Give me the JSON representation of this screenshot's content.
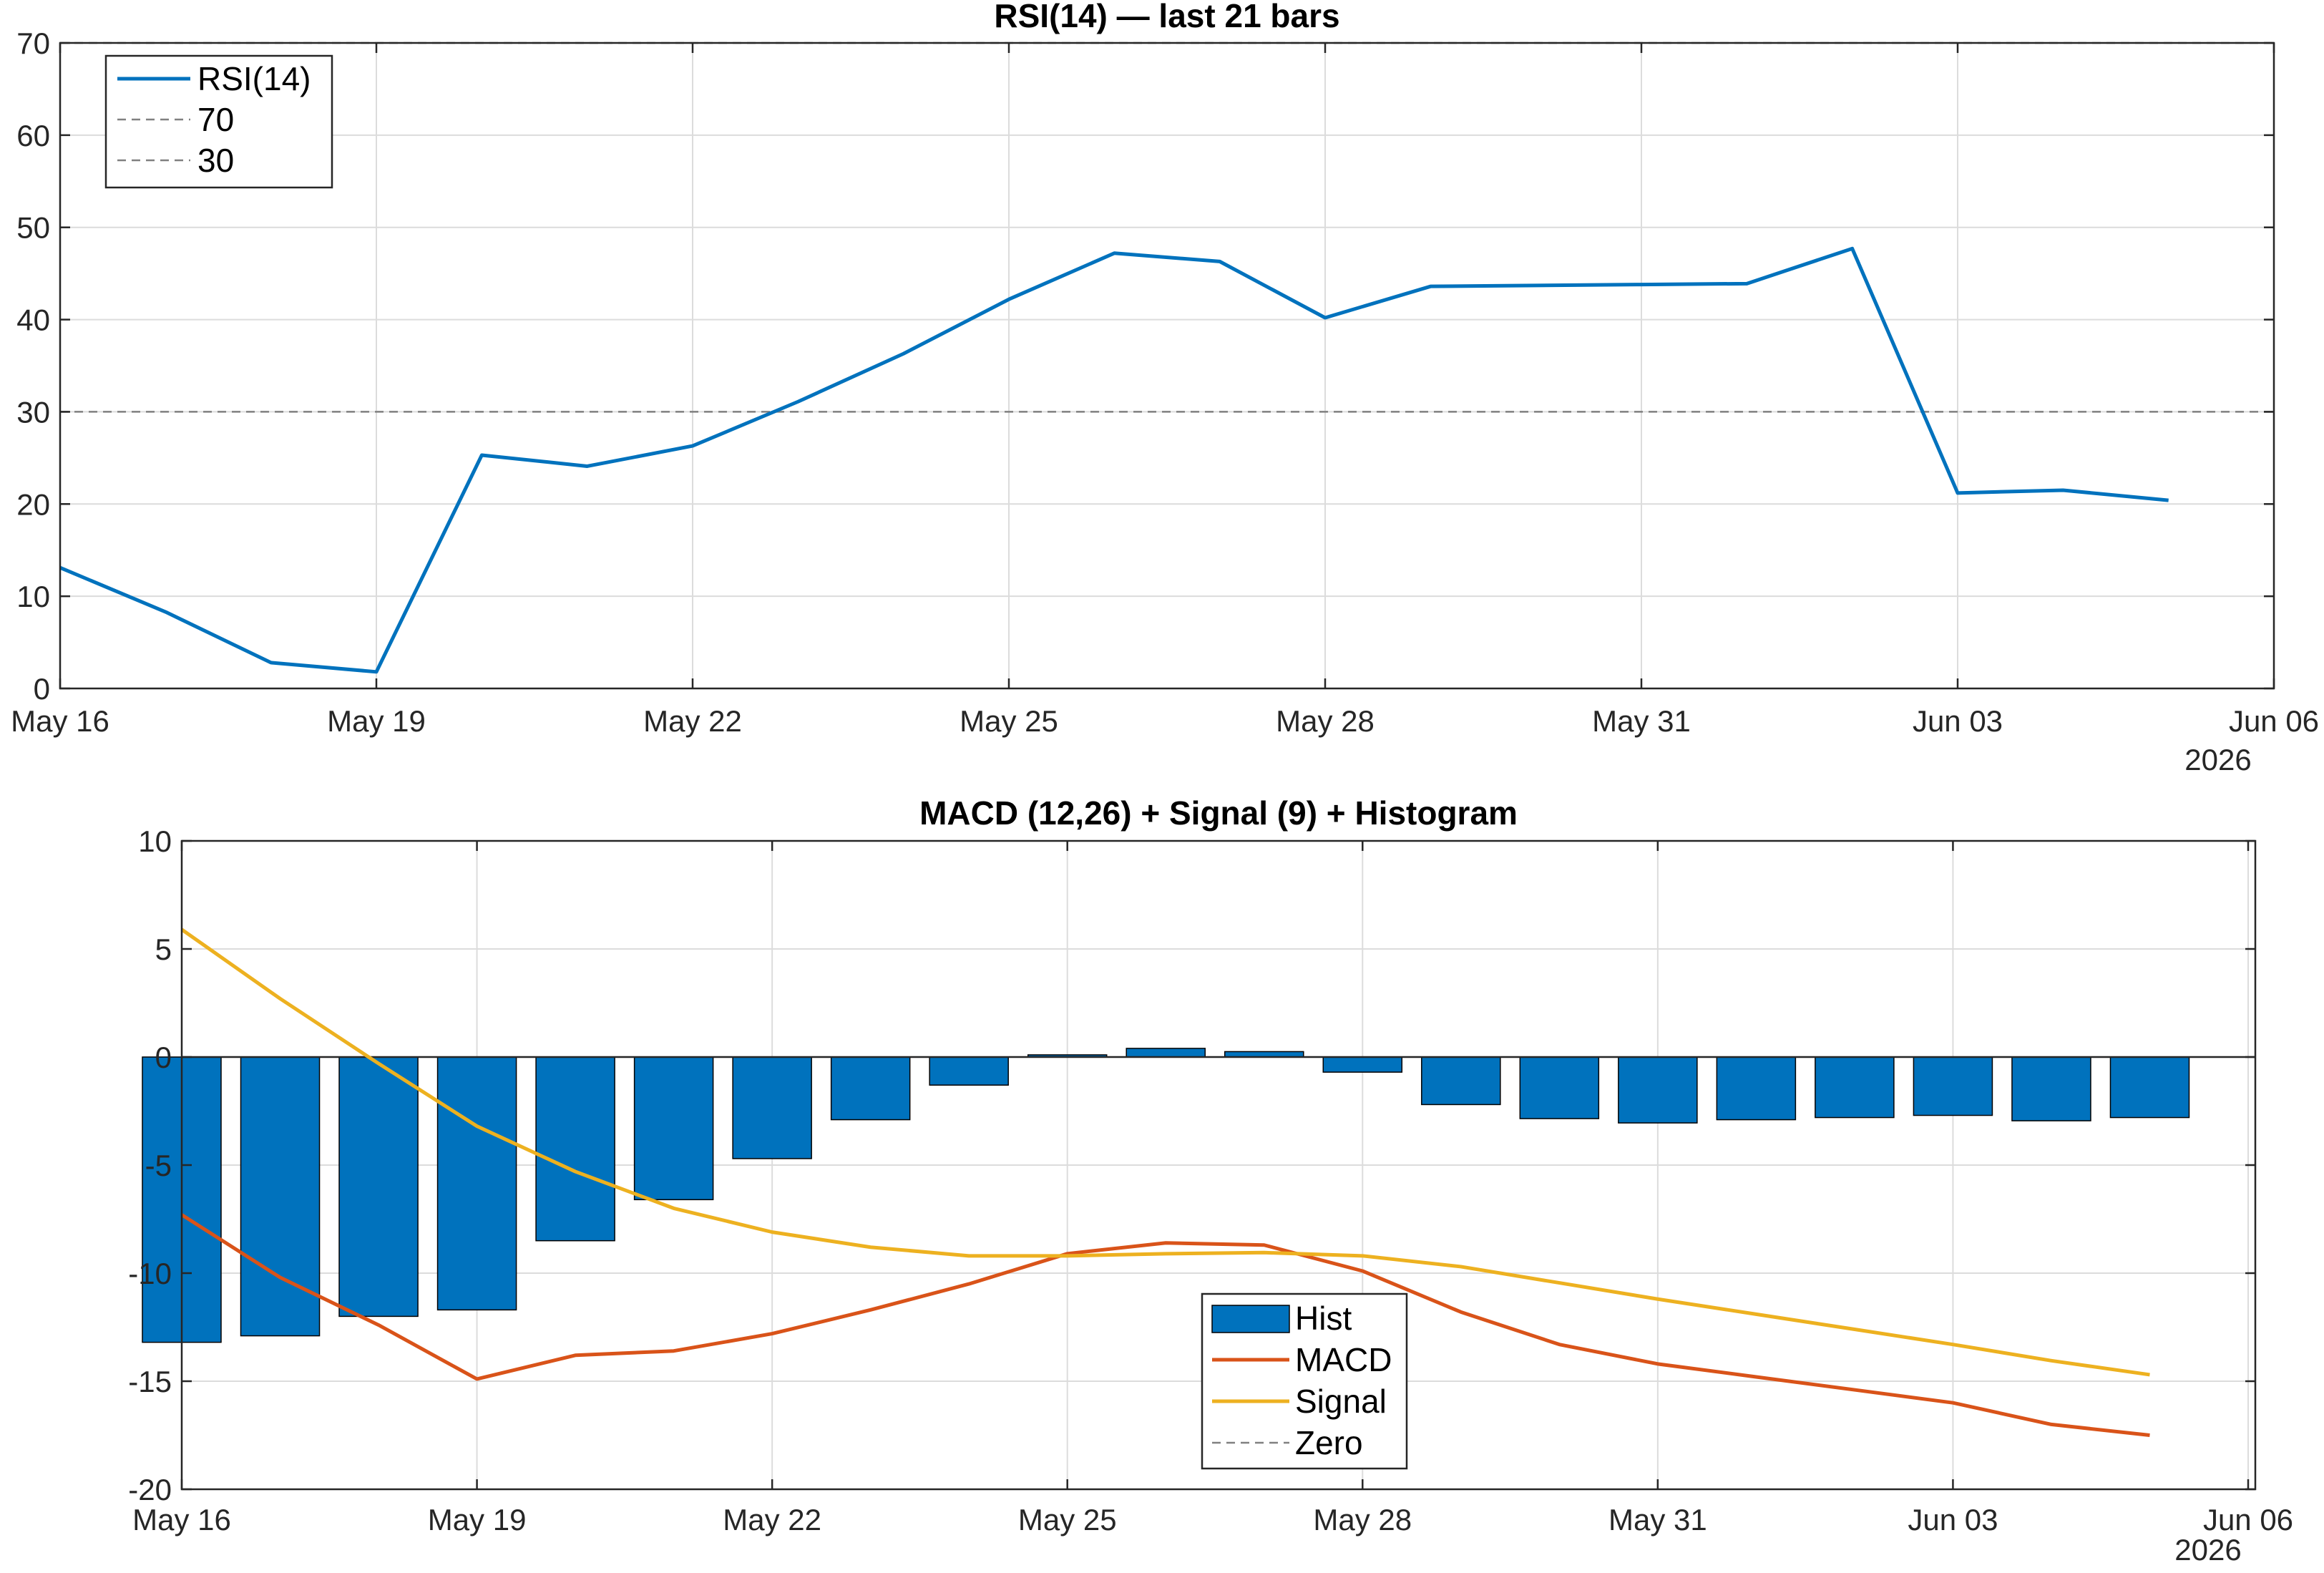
{
  "chart_data": [
    {
      "type": "line",
      "title": "RSI(14) — last 21 bars",
      "xlabel": "",
      "ylabel": "",
      "x_start": "May 16",
      "x_tick_labels": [
        "May 16",
        "May 19",
        "May 22",
        "May 25",
        "May 28",
        "May 31",
        "Jun 03",
        "Jun 06"
      ],
      "x_year_label": "2026",
      "y_ticks": [
        "0",
        "10",
        "20",
        "30",
        "40",
        "50",
        "60",
        "70"
      ],
      "ylim": [
        0,
        70
      ],
      "grid": true,
      "legend_position": "top-left",
      "series": [
        {
          "name": "RSI(14)",
          "color": "#0072BD",
          "style": "solid",
          "x": [
            "May 16",
            "May 17",
            "May 18",
            "May 19",
            "May 20",
            "May 21",
            "May 22",
            "May 23",
            "May 24",
            "May 25",
            "May 26",
            "May 27",
            "May 28",
            "May 29",
            "May 30",
            "May 31",
            "Jun 01",
            "Jun 02",
            "Jun 03",
            "Jun 04",
            "Jun 05"
          ],
          "values": [
            13.1,
            8.3,
            2.8,
            1.8,
            25.3,
            24.1,
            26.3,
            31.1,
            36.3,
            42.2,
            47.2,
            46.3,
            40.2,
            43.6,
            43.7,
            43.8,
            43.9,
            47.7,
            21.2,
            21.5,
            20.4
          ]
        },
        {
          "name": "70",
          "color": "#808080",
          "style": "dashed",
          "constant": 70
        },
        {
          "name": "30",
          "color": "#808080",
          "style": "dashed",
          "constant": 30
        }
      ]
    },
    {
      "type": "bar",
      "title": "MACD (12,26) + Signal (9) + Histogram",
      "xlabel": "",
      "ylabel": "",
      "x_tick_labels": [
        "May 16",
        "May 19",
        "May 22",
        "May 25",
        "May 28",
        "May 31",
        "Jun 03",
        "Jun 06"
      ],
      "x_year_label": "2026",
      "y_ticks": [
        "-20",
        "-15",
        "-10",
        "-5",
        "0",
        "5",
        "10"
      ],
      "ylim": [
        -20,
        10
      ],
      "grid": true,
      "legend_position": "bottom-center",
      "categories": [
        "May 16",
        "May 17",
        "May 18",
        "May 19",
        "May 20",
        "May 21",
        "May 22",
        "May 23",
        "May 24",
        "May 25",
        "May 26",
        "May 27",
        "May 28",
        "May 29",
        "May 30",
        "May 31",
        "Jun 01",
        "Jun 02",
        "Jun 03",
        "Jun 04",
        "Jun 05"
      ],
      "series": [
        {
          "name": "Hist",
          "kind": "bar",
          "color": "#0072BD",
          "values": [
            -13.2,
            -12.9,
            -12.0,
            -11.7,
            -8.5,
            -6.6,
            -4.7,
            -2.9,
            -1.3,
            0.1,
            0.4,
            0.25,
            -0.7,
            -2.2,
            -2.85,
            -3.05,
            -2.9,
            -2.8,
            -2.7,
            -2.95,
            -2.8
          ]
        },
        {
          "name": "MACD",
          "kind": "line",
          "color": "#D95319",
          "values": [
            -7.3,
            -10.2,
            -12.4,
            -14.9,
            -13.8,
            -13.6,
            -12.8,
            -11.7,
            -10.5,
            -9.1,
            -8.6,
            -8.7,
            -9.9,
            -11.8,
            -13.3,
            -14.2,
            -14.8,
            -15.4,
            -16.0,
            -17.0,
            -17.5
          ]
        },
        {
          "name": "Signal",
          "kind": "line",
          "color": "#EDB120",
          "values": [
            5.9,
            2.7,
            -0.3,
            -3.2,
            -5.3,
            -7.0,
            -8.1,
            -8.8,
            -9.2,
            -9.2,
            -9.1,
            -9.05,
            -9.2,
            -9.7,
            -10.45,
            -11.2,
            -11.9,
            -12.6,
            -13.3,
            -14.05,
            -14.7
          ]
        },
        {
          "name": "Zero",
          "kind": "line",
          "color": "#808080",
          "style": "dashed",
          "constant": 0
        }
      ]
    }
  ]
}
